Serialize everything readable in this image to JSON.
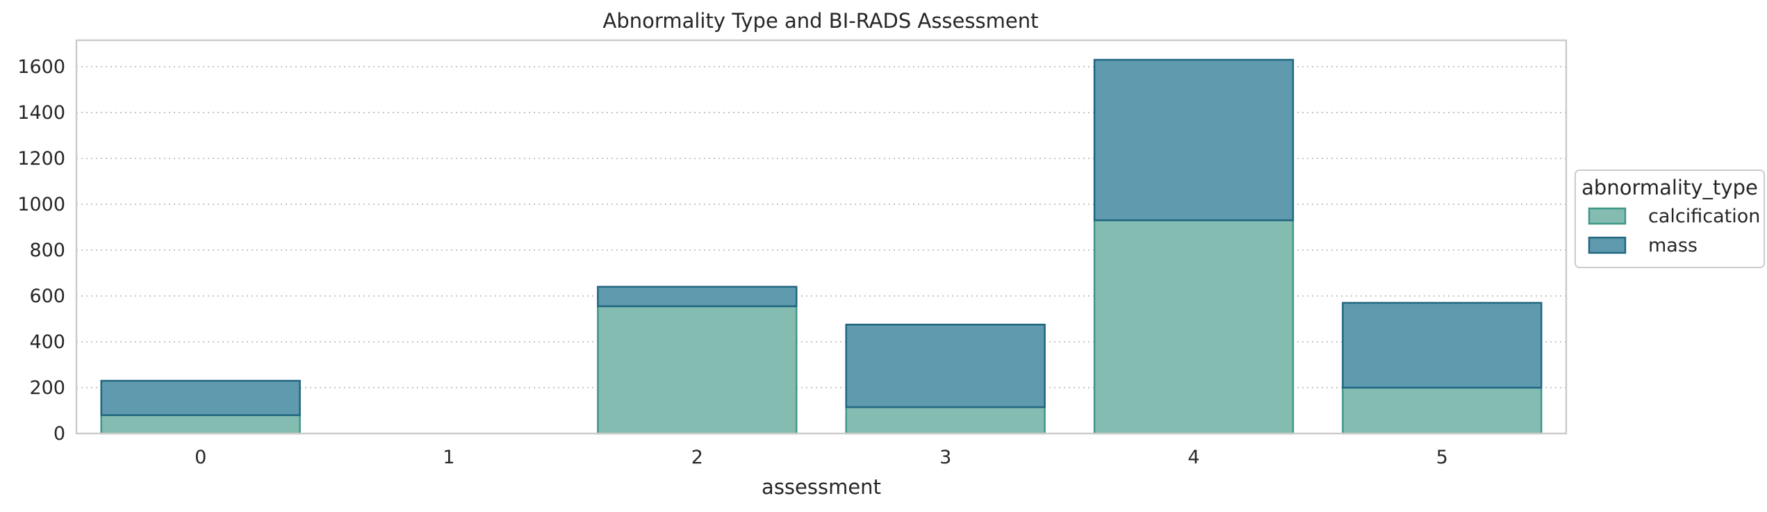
{
  "chart_data": {
    "type": "bar",
    "stacked": true,
    "title": "Abnormality Type and BI-RADS Assessment",
    "xlabel": "assessment",
    "ylabel": "",
    "categories": [
      "0",
      "1",
      "2",
      "3",
      "4",
      "5"
    ],
    "yticks": [
      0,
      200,
      400,
      600,
      800,
      1000,
      1200,
      1400,
      1600
    ],
    "ylim": [
      0,
      1715
    ],
    "grid": "horizontal-dotted",
    "legend": {
      "title": "abnormality_type",
      "placement": "right-outside"
    },
    "series": [
      {
        "name": "calcification",
        "values": [
          80,
          0,
          555,
          115,
          930,
          200
        ],
        "color": "#84bcb1",
        "edge": "#3f9788"
      },
      {
        "name": "mass",
        "values": [
          150,
          0,
          85,
          360,
          700,
          370
        ],
        "color": "#5f9aae",
        "edge": "#1f6680"
      }
    ]
  }
}
